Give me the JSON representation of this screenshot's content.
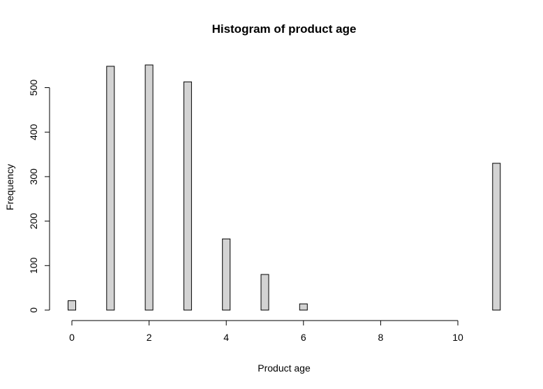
{
  "chart_data": {
    "type": "bar",
    "title": "Histogram of product age",
    "xlabel": "Product age",
    "ylabel": "Frequency",
    "xlim": [
      0,
      11
    ],
    "ylim": [
      0,
      550
    ],
    "x_ticks": [
      0,
      2,
      4,
      6,
      8,
      10
    ],
    "y_ticks": [
      0,
      100,
      200,
      300,
      400,
      500
    ],
    "bar_fill": "#d3d3d3",
    "bar_stroke": "#000000",
    "grid": false,
    "bins": [
      {
        "x": 0,
        "value": 21
      },
      {
        "x": 1,
        "value": 548
      },
      {
        "x": 2,
        "value": 551
      },
      {
        "x": 3,
        "value": 513
      },
      {
        "x": 4,
        "value": 160
      },
      {
        "x": 5,
        "value": 80
      },
      {
        "x": 6,
        "value": 14
      },
      {
        "x": 11,
        "value": 330
      }
    ]
  }
}
